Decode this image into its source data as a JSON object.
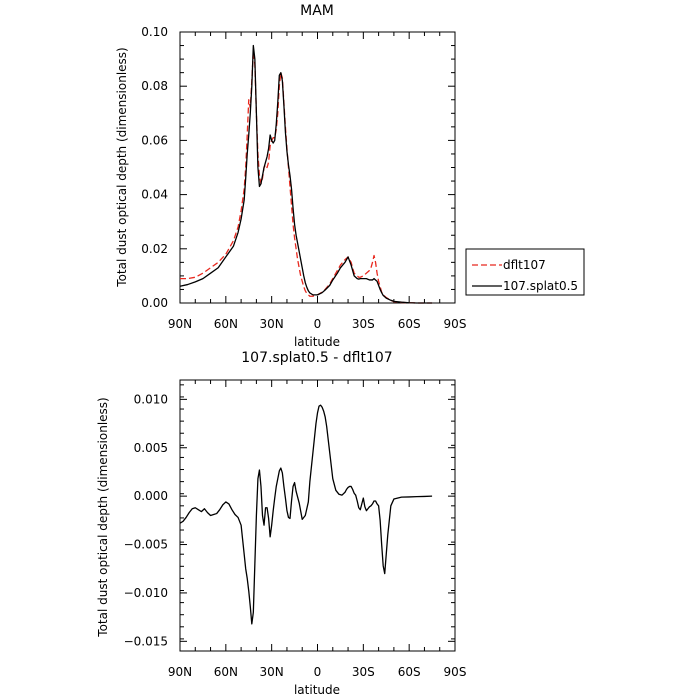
{
  "chart_data": [
    {
      "type": "line",
      "title": "MAM",
      "xlabel": "latitude",
      "ylabel": "Total dust optical depth (dimensionless)",
      "xlim": [
        90,
        -90
      ],
      "ylim": [
        0,
        0.1
      ],
      "x_ticks": [
        90,
        60,
        30,
        0,
        -30,
        -60,
        -90
      ],
      "x_tick_labels": [
        "90N",
        "60N",
        "30N",
        "0",
        "30S",
        "60S",
        "90S"
      ],
      "y_ticks": [
        0,
        0.02,
        0.04,
        0.06,
        0.08,
        0.1
      ],
      "y_tick_labels": [
        "0.00",
        "0.02",
        "0.04",
        "0.06",
        "0.08",
        "0.10"
      ],
      "legend_position": "right",
      "series": [
        {
          "name": "dflt107",
          "color": "#e8281e",
          "dash": "dashed",
          "x": [
            90,
            85,
            80,
            75,
            70,
            65,
            60,
            55,
            52,
            50,
            48,
            47,
            46,
            45,
            44,
            43,
            42,
            41,
            40,
            39,
            38,
            37,
            36,
            35,
            34,
            33,
            32,
            31,
            30,
            29,
            28,
            27,
            26,
            25,
            24,
            23,
            22,
            21,
            20,
            19,
            18,
            17,
            16,
            15,
            14,
            13,
            12,
            11,
            10,
            9,
            8,
            7,
            6,
            5,
            3,
            0,
            -3,
            -5,
            -8,
            -10,
            -13,
            -15,
            -18,
            -20,
            -22,
            -24,
            -26,
            -27,
            -28,
            -30,
            -32,
            -34,
            -35,
            -36,
            -37,
            -38,
            -39,
            -40,
            -41,
            -42,
            -43,
            -45,
            -48,
            -50,
            -55,
            -60,
            -65,
            -70,
            -75
          ],
          "y": [
            0.009,
            0.009,
            0.0095,
            0.011,
            0.013,
            0.015,
            0.018,
            0.023,
            0.028,
            0.034,
            0.042,
            0.05,
            0.062,
            0.075,
            0.072,
            0.082,
            0.093,
            0.088,
            0.07,
            0.055,
            0.047,
            0.044,
            0.046,
            0.05,
            0.051,
            0.05,
            0.052,
            0.058,
            0.06,
            0.061,
            0.061,
            0.064,
            0.07,
            0.08,
            0.085,
            0.083,
            0.074,
            0.065,
            0.057,
            0.05,
            0.043,
            0.036,
            0.029,
            0.024,
            0.02,
            0.016,
            0.013,
            0.01,
            0.008,
            0.006,
            0.0045,
            0.0035,
            0.003,
            0.0025,
            0.0025,
            0.003,
            0.004,
            0.005,
            0.007,
            0.009,
            0.012,
            0.014,
            0.016,
            0.017,
            0.015,
            0.011,
            0.01,
            0.0095,
            0.0095,
            0.01,
            0.011,
            0.012,
            0.013,
            0.015,
            0.0175,
            0.015,
            0.011,
            0.008,
            0.006,
            0.004,
            0.003,
            0.002,
            0.001,
            0.0005,
            0.0002,
            0.0001,
            0.0,
            0.0,
            0.0
          ]
        },
        {
          "name": "107.splat0.5",
          "color": "#000000",
          "dash": "solid",
          "x": [
            90,
            85,
            80,
            75,
            70,
            65,
            60,
            55,
            52,
            50,
            48,
            47,
            46,
            45,
            44,
            43,
            42,
            41,
            40,
            39,
            38,
            37,
            36,
            35,
            34,
            33,
            32,
            31,
            30,
            29,
            28,
            27,
            26,
            25,
            24,
            23,
            22,
            21,
            20,
            19,
            18,
            17,
            16,
            15,
            14,
            13,
            12,
            11,
            10,
            9,
            8,
            7,
            6,
            5,
            3,
            0,
            -3,
            -5,
            -8,
            -10,
            -13,
            -15,
            -18,
            -20,
            -22,
            -24,
            -26,
            -27,
            -28,
            -30,
            -32,
            -34,
            -35,
            -36,
            -37,
            -38,
            -39,
            -40,
            -41,
            -42,
            -43,
            -45,
            -48,
            -50,
            -55,
            -60,
            -65,
            -70,
            -75
          ],
          "y": [
            0.0062,
            0.0068,
            0.0078,
            0.009,
            0.011,
            0.013,
            0.017,
            0.021,
            0.026,
            0.031,
            0.038,
            0.046,
            0.055,
            0.062,
            0.07,
            0.08,
            0.095,
            0.09,
            0.07,
            0.05,
            0.043,
            0.044,
            0.047,
            0.05,
            0.052,
            0.054,
            0.057,
            0.062,
            0.06,
            0.059,
            0.06,
            0.066,
            0.074,
            0.084,
            0.085,
            0.082,
            0.073,
            0.063,
            0.056,
            0.051,
            0.047,
            0.042,
            0.035,
            0.029,
            0.025,
            0.022,
            0.019,
            0.016,
            0.013,
            0.01,
            0.0075,
            0.0058,
            0.0045,
            0.0037,
            0.003,
            0.003,
            0.0038,
            0.0048,
            0.0065,
            0.0085,
            0.011,
            0.013,
            0.015,
            0.017,
            0.014,
            0.01,
            0.009,
            0.0088,
            0.009,
            0.009,
            0.009,
            0.0085,
            0.0085,
            0.0085,
            0.009,
            0.0085,
            0.008,
            0.0065,
            0.005,
            0.0038,
            0.0028,
            0.0018,
            0.001,
            0.0006,
            0.0003,
            0.0001,
            0.0,
            0.0,
            0.0
          ]
        }
      ]
    },
    {
      "type": "line",
      "title": "107.splat0.5 - dflt107",
      "xlabel": "latitude",
      "ylabel": "Total dust optical depth (dimensionless)",
      "xlim": [
        90,
        -90
      ],
      "ylim": [
        -0.016,
        0.012
      ],
      "x_ticks": [
        90,
        60,
        30,
        0,
        -30,
        -60,
        -90
      ],
      "x_tick_labels": [
        "90N",
        "60N",
        "30N",
        "0",
        "30S",
        "60S",
        "90S"
      ],
      "y_ticks": [
        -0.015,
        -0.01,
        -0.005,
        0.0,
        0.005,
        0.01
      ],
      "y_tick_labels": [
        "−0.015",
        "−0.010",
        "−0.005",
        "0.000",
        "0.005",
        "0.010"
      ],
      "series": [
        {
          "color": "#000000",
          "dash": "solid",
          "x": [
            90,
            88,
            86,
            84,
            82,
            80,
            78,
            76,
            74,
            72,
            70,
            68,
            66,
            64,
            62,
            60,
            58,
            56,
            54,
            52,
            50,
            49,
            48,
            47,
            46,
            45,
            44,
            43,
            42,
            41,
            40,
            39,
            38,
            37,
            36,
            35,
            34,
            33,
            32,
            31,
            30,
            29,
            28,
            27,
            26,
            25,
            24,
            23,
            22,
            21,
            20,
            19,
            18,
            17,
            16,
            15,
            14,
            12,
            10,
            8,
            6,
            5,
            4,
            3,
            2,
            1,
            0,
            -1,
            -2,
            -3,
            -4,
            -5,
            -6,
            -8,
            -10,
            -12,
            -14,
            -16,
            -18,
            -19,
            -20,
            -21,
            -22,
            -23,
            -24,
            -25,
            -26,
            -27,
            -28,
            -29,
            -30,
            -31,
            -32,
            -33,
            -34,
            -35,
            -36,
            -37,
            -38,
            -39,
            -40,
            -41,
            -42,
            -43,
            -44,
            -45,
            -46,
            -48,
            -50,
            -55,
            -60,
            -65,
            -70,
            -75
          ],
          "y": [
            -0.0028,
            -0.0026,
            -0.0022,
            -0.0017,
            -0.0013,
            -0.0012,
            -0.0014,
            -0.0016,
            -0.0013,
            -0.0017,
            -0.002,
            -0.0019,
            -0.0018,
            -0.0014,
            -0.0009,
            -0.0006,
            -0.0008,
            -0.0014,
            -0.0019,
            -0.0022,
            -0.003,
            -0.0045,
            -0.006,
            -0.0075,
            -0.0085,
            -0.0098,
            -0.0114,
            -0.0132,
            -0.012,
            -0.007,
            -0.002,
            0.0018,
            0.0027,
            0.001,
            -0.002,
            -0.003,
            -0.0012,
            -0.0012,
            -0.0023,
            -0.0042,
            -0.003,
            -0.0015,
            -0.0002,
            0.001,
            0.0018,
            0.0026,
            0.0029,
            0.0024,
            0.001,
            -0.0002,
            -0.0015,
            -0.0022,
            -0.0023,
            -0.0005,
            0.001,
            0.0014,
            0.0005,
            -0.0007,
            -0.0024,
            -0.002,
            -0.0006,
            0.0015,
            0.003,
            0.0045,
            0.006,
            0.0075,
            0.0086,
            0.0093,
            0.0094,
            0.0092,
            0.0088,
            0.0082,
            0.0072,
            0.0045,
            0.0018,
            0.0006,
            0.0002,
            0.0001,
            0.0004,
            0.0007,
            0.0009,
            0.001,
            0.001,
            0.0007,
            0.0003,
            0.0001,
            -0.0005,
            -0.0012,
            -0.0014,
            -0.0008,
            -0.0002,
            -0.0011,
            -0.0015,
            -0.0013,
            -0.0011,
            -0.001,
            -0.0008,
            -0.0005,
            -0.0005,
            -0.0008,
            -0.001,
            -0.0025,
            -0.005,
            -0.0072,
            -0.008,
            -0.006,
            -0.004,
            -0.001,
            -0.0003,
            -0.0001,
            -8e-05,
            -5e-05,
            -3e-05,
            0.0
          ]
        }
      ]
    }
  ]
}
